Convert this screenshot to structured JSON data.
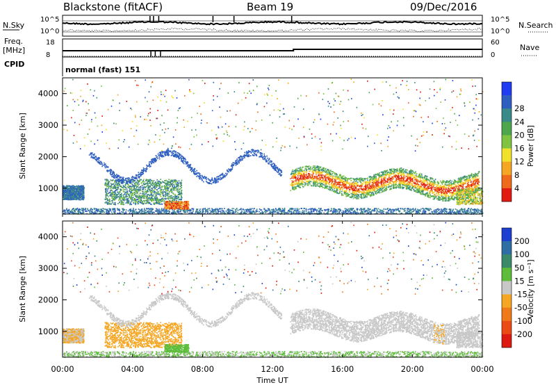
{
  "header": {
    "radar": "Blackstone (fitACF)",
    "beam": "Beam 19",
    "date": "09/Dec/2016"
  },
  "strip_labels": {
    "nsky": "N.Sky",
    "nsearch": "N.Search",
    "freq_line1": "Freq.",
    "freq_line2": "[MHz]",
    "nave": "Nave",
    "cpid": "CPID",
    "cpid_value": "normal (fast) 151"
  },
  "noise_axis": {
    "left_ticks": [
      "10^5",
      "10^0"
    ],
    "right_ticks": [
      "10^5",
      "10^0"
    ]
  },
  "freq_axis": {
    "left_ticks": [
      "18",
      "8"
    ],
    "right_ticks": [
      "60",
      "0"
    ]
  },
  "chart_data": [
    {
      "type": "line",
      "title": "N.Sky / N.Search",
      "series": [
        {
          "name": "N.Sky",
          "style": "solid"
        },
        {
          "name": "N.Search",
          "style": "dotted"
        }
      ]
    },
    {
      "type": "line",
      "title": "Freq. / Nave",
      "series": [
        {
          "name": "Freq. [MHz]",
          "style": "solid",
          "approx_value": 11
        },
        {
          "name": "Nave",
          "style": "dotted"
        }
      ]
    },
    {
      "type": "heatmap",
      "ylabel": "Slant Range [km]",
      "xlabel": "Time UT",
      "xlim_hours": [
        0,
        24
      ],
      "ylim": [
        180,
        4500
      ],
      "y_ticks": [
        1000,
        2000,
        3000,
        4000
      ],
      "colorbar": {
        "label": "Power [dB]",
        "ticks": [
          4,
          8,
          12,
          16,
          20,
          24,
          28
        ],
        "colors": [
          "#1f3cf0",
          "#2e5fc0",
          "#3b8a8a",
          "#4da54c",
          "#7fc341",
          "#f2e12a",
          "#f5a623",
          "#ef6a1b",
          "#e11b12"
        ]
      }
    },
    {
      "type": "heatmap",
      "ylabel": "Slant Range [km]",
      "xlabel": "Time UT",
      "xlim_hours": [
        0,
        24
      ],
      "ylim": [
        180,
        4500
      ],
      "y_ticks": [
        1000,
        2000,
        3000,
        4000
      ],
      "colorbar": {
        "label": "Velocity [m s-1]",
        "ticks": [
          200,
          100,
          50,
          15,
          -15,
          -50,
          -100,
          -200
        ],
        "colors": [
          "#1d3fcf",
          "#2f6ea3",
          "#3a8a6a",
          "#5dbd3a",
          "#c8c8c8",
          "#f5a623",
          "#f07a19",
          "#ea4b14",
          "#dd1a12"
        ]
      }
    }
  ],
  "x_axis": {
    "label": "Time UT",
    "ticks": [
      "00:00",
      "04:00",
      "08:00",
      "12:00",
      "16:00",
      "20:00",
      "00:00"
    ]
  },
  "colorbar_labels": {
    "power_label": "Power [dB]",
    "velocity_label": "Velocity [m s⁻¹]"
  }
}
